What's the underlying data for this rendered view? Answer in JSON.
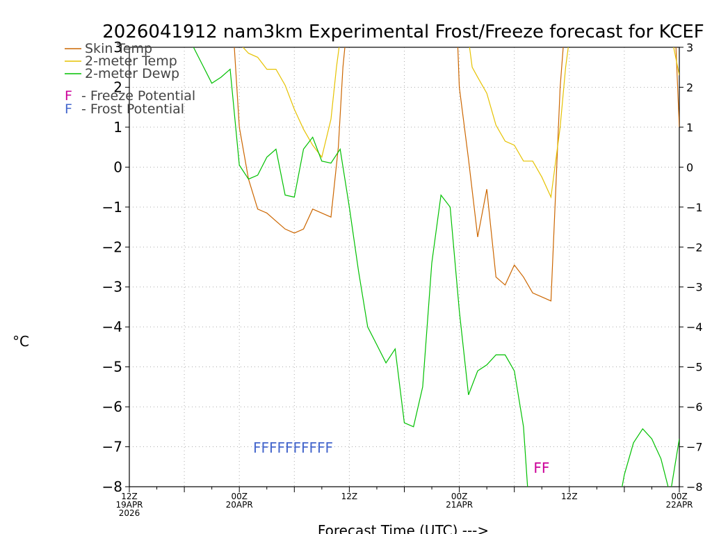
{
  "chart_data": {
    "type": "line",
    "title": "2026041912 nam3km Experimental Frost/Freeze forecast for KCEF",
    "ylabel": "°C",
    "xlabel": "Forecast Time (UTC) --->",
    "ylim": [
      -8,
      3
    ],
    "xlim": [
      0,
      60
    ],
    "grid": true,
    "yticks": [
      -8,
      -7,
      -6,
      -5,
      -4,
      -3,
      -2,
      -1,
      0,
      1,
      2,
      3
    ],
    "xticks": [
      {
        "x": 0,
        "lines": [
          "12Z",
          "19APR",
          "2026"
        ]
      },
      {
        "x": 12,
        "lines": [
          "00Z",
          "20APR"
        ]
      },
      {
        "x": 24,
        "lines": [
          "12Z"
        ]
      },
      {
        "x": 36,
        "lines": [
          "00Z",
          "21APR"
        ]
      },
      {
        "x": 48,
        "lines": [
          "12Z"
        ]
      },
      {
        "x": 60,
        "lines": [
          "00Z",
          "22APR"
        ]
      }
    ],
    "series": [
      {
        "name": "Skin Temp",
        "color": "#cc6600",
        "points": [
          [
            11.4,
            3.2
          ],
          [
            12,
            1.0
          ],
          [
            13,
            -0.3
          ],
          [
            14,
            -1.05
          ],
          [
            15,
            -1.15
          ],
          [
            16,
            -1.35
          ],
          [
            17,
            -1.55
          ],
          [
            18,
            -1.65
          ],
          [
            19,
            -1.55
          ],
          [
            20,
            -1.05
          ],
          [
            21,
            -1.15
          ],
          [
            22,
            -1.25
          ],
          [
            22.8,
            0.5
          ],
          [
            23.3,
            2.5
          ],
          [
            23.6,
            3.2
          ],
          [
            35.8,
            3.2
          ],
          [
            36,
            2.0
          ],
          [
            37,
            0.2
          ],
          [
            38,
            -1.75
          ],
          [
            39,
            -0.55
          ],
          [
            40,
            -2.75
          ],
          [
            41,
            -2.95
          ],
          [
            42,
            -2.45
          ],
          [
            43,
            -2.75
          ],
          [
            44,
            -3.15
          ],
          [
            45,
            -3.25
          ],
          [
            46,
            -3.35
          ],
          [
            47,
            2.0
          ],
          [
            47.4,
            3.2
          ],
          [
            59.6,
            3.2
          ],
          [
            60,
            1.0
          ]
        ]
      },
      {
        "name": "2-meter Temp",
        "color": "#e6c200",
        "points": [
          [
            11.8,
            3.2
          ],
          [
            12,
            3.1
          ],
          [
            13,
            2.85
          ],
          [
            14,
            2.75
          ],
          [
            15,
            2.45
          ],
          [
            16,
            2.45
          ],
          [
            17,
            2.05
          ],
          [
            18,
            1.45
          ],
          [
            19,
            0.95
          ],
          [
            20,
            0.55
          ],
          [
            21,
            0.25
          ],
          [
            22,
            1.2
          ],
          [
            22.6,
            2.5
          ],
          [
            23,
            3.2
          ],
          [
            37,
            3.2
          ],
          [
            37.4,
            2.5
          ],
          [
            38,
            2.25
          ],
          [
            39,
            1.85
          ],
          [
            40,
            1.05
          ],
          [
            41,
            0.65
          ],
          [
            42,
            0.55
          ],
          [
            43,
            0.15
          ],
          [
            44,
            0.15
          ],
          [
            45,
            -0.25
          ],
          [
            46,
            -0.75
          ],
          [
            47,
            1.0
          ],
          [
            47.6,
            2.5
          ],
          [
            48,
            3.2
          ],
          [
            59.2,
            3.2
          ],
          [
            60,
            2.3
          ]
        ]
      },
      {
        "name": "2-meter Dewp",
        "color": "#00c000",
        "points": [
          [
            7,
            3.0
          ],
          [
            8,
            2.55
          ],
          [
            9,
            2.1
          ],
          [
            10,
            2.25
          ],
          [
            11,
            2.45
          ],
          [
            12,
            0.05
          ],
          [
            13,
            -0.3
          ],
          [
            14,
            -0.2
          ],
          [
            15,
            0.25
          ],
          [
            16,
            0.45
          ],
          [
            17,
            -0.7
          ],
          [
            18,
            -0.75
          ],
          [
            19,
            0.45
          ],
          [
            20,
            0.75
          ],
          [
            21,
            0.15
          ],
          [
            22,
            0.1
          ],
          [
            23,
            0.45
          ],
          [
            24,
            -1.0
          ],
          [
            25,
            -2.6
          ],
          [
            26,
            -4.0
          ],
          [
            27,
            -4.45
          ],
          [
            28,
            -4.9
          ],
          [
            29,
            -4.55
          ],
          [
            30,
            -6.4
          ],
          [
            31,
            -6.5
          ],
          [
            32,
            -5.5
          ],
          [
            33,
            -2.4
          ],
          [
            34,
            -0.7
          ],
          [
            35,
            -1.0
          ],
          [
            36,
            -3.6
          ],
          [
            37,
            -5.7
          ],
          [
            38,
            -5.1
          ],
          [
            39,
            -4.95
          ],
          [
            40,
            -4.7
          ],
          [
            41,
            -4.7
          ],
          [
            42,
            -5.1
          ],
          [
            43,
            -6.5
          ],
          [
            43.5,
            -8.2
          ],
          [
            53.6,
            -8.2
          ],
          [
            54,
            -7.7
          ],
          [
            55,
            -6.9
          ],
          [
            56,
            -6.55
          ],
          [
            57,
            -6.8
          ],
          [
            58,
            -7.3
          ],
          [
            59,
            -8.2
          ],
          [
            60,
            -6.8
          ]
        ]
      }
    ],
    "legend": {
      "placement": "top-left",
      "entries": [
        {
          "label": "Skin Temp",
          "color": "#cc6600"
        },
        {
          "label": "2-meter Temp",
          "color": "#e6c200"
        },
        {
          "label": "2-meter Dewp",
          "color": "#00c000"
        }
      ],
      "flag_entries": [
        {
          "letter": "F",
          "label": "- Freeze Potential",
          "color": "#cc0099"
        },
        {
          "letter": "F",
          "label": "- Frost Potential",
          "color": "#4466cc"
        }
      ]
    },
    "flags": [
      {
        "text": "FFFFFFFFFF",
        "x": 13.5,
        "y": -7.15,
        "color": "#4466cc"
      },
      {
        "text": "FF",
        "x": 44.1,
        "y": -7.65,
        "color": "#cc0099"
      }
    ]
  }
}
